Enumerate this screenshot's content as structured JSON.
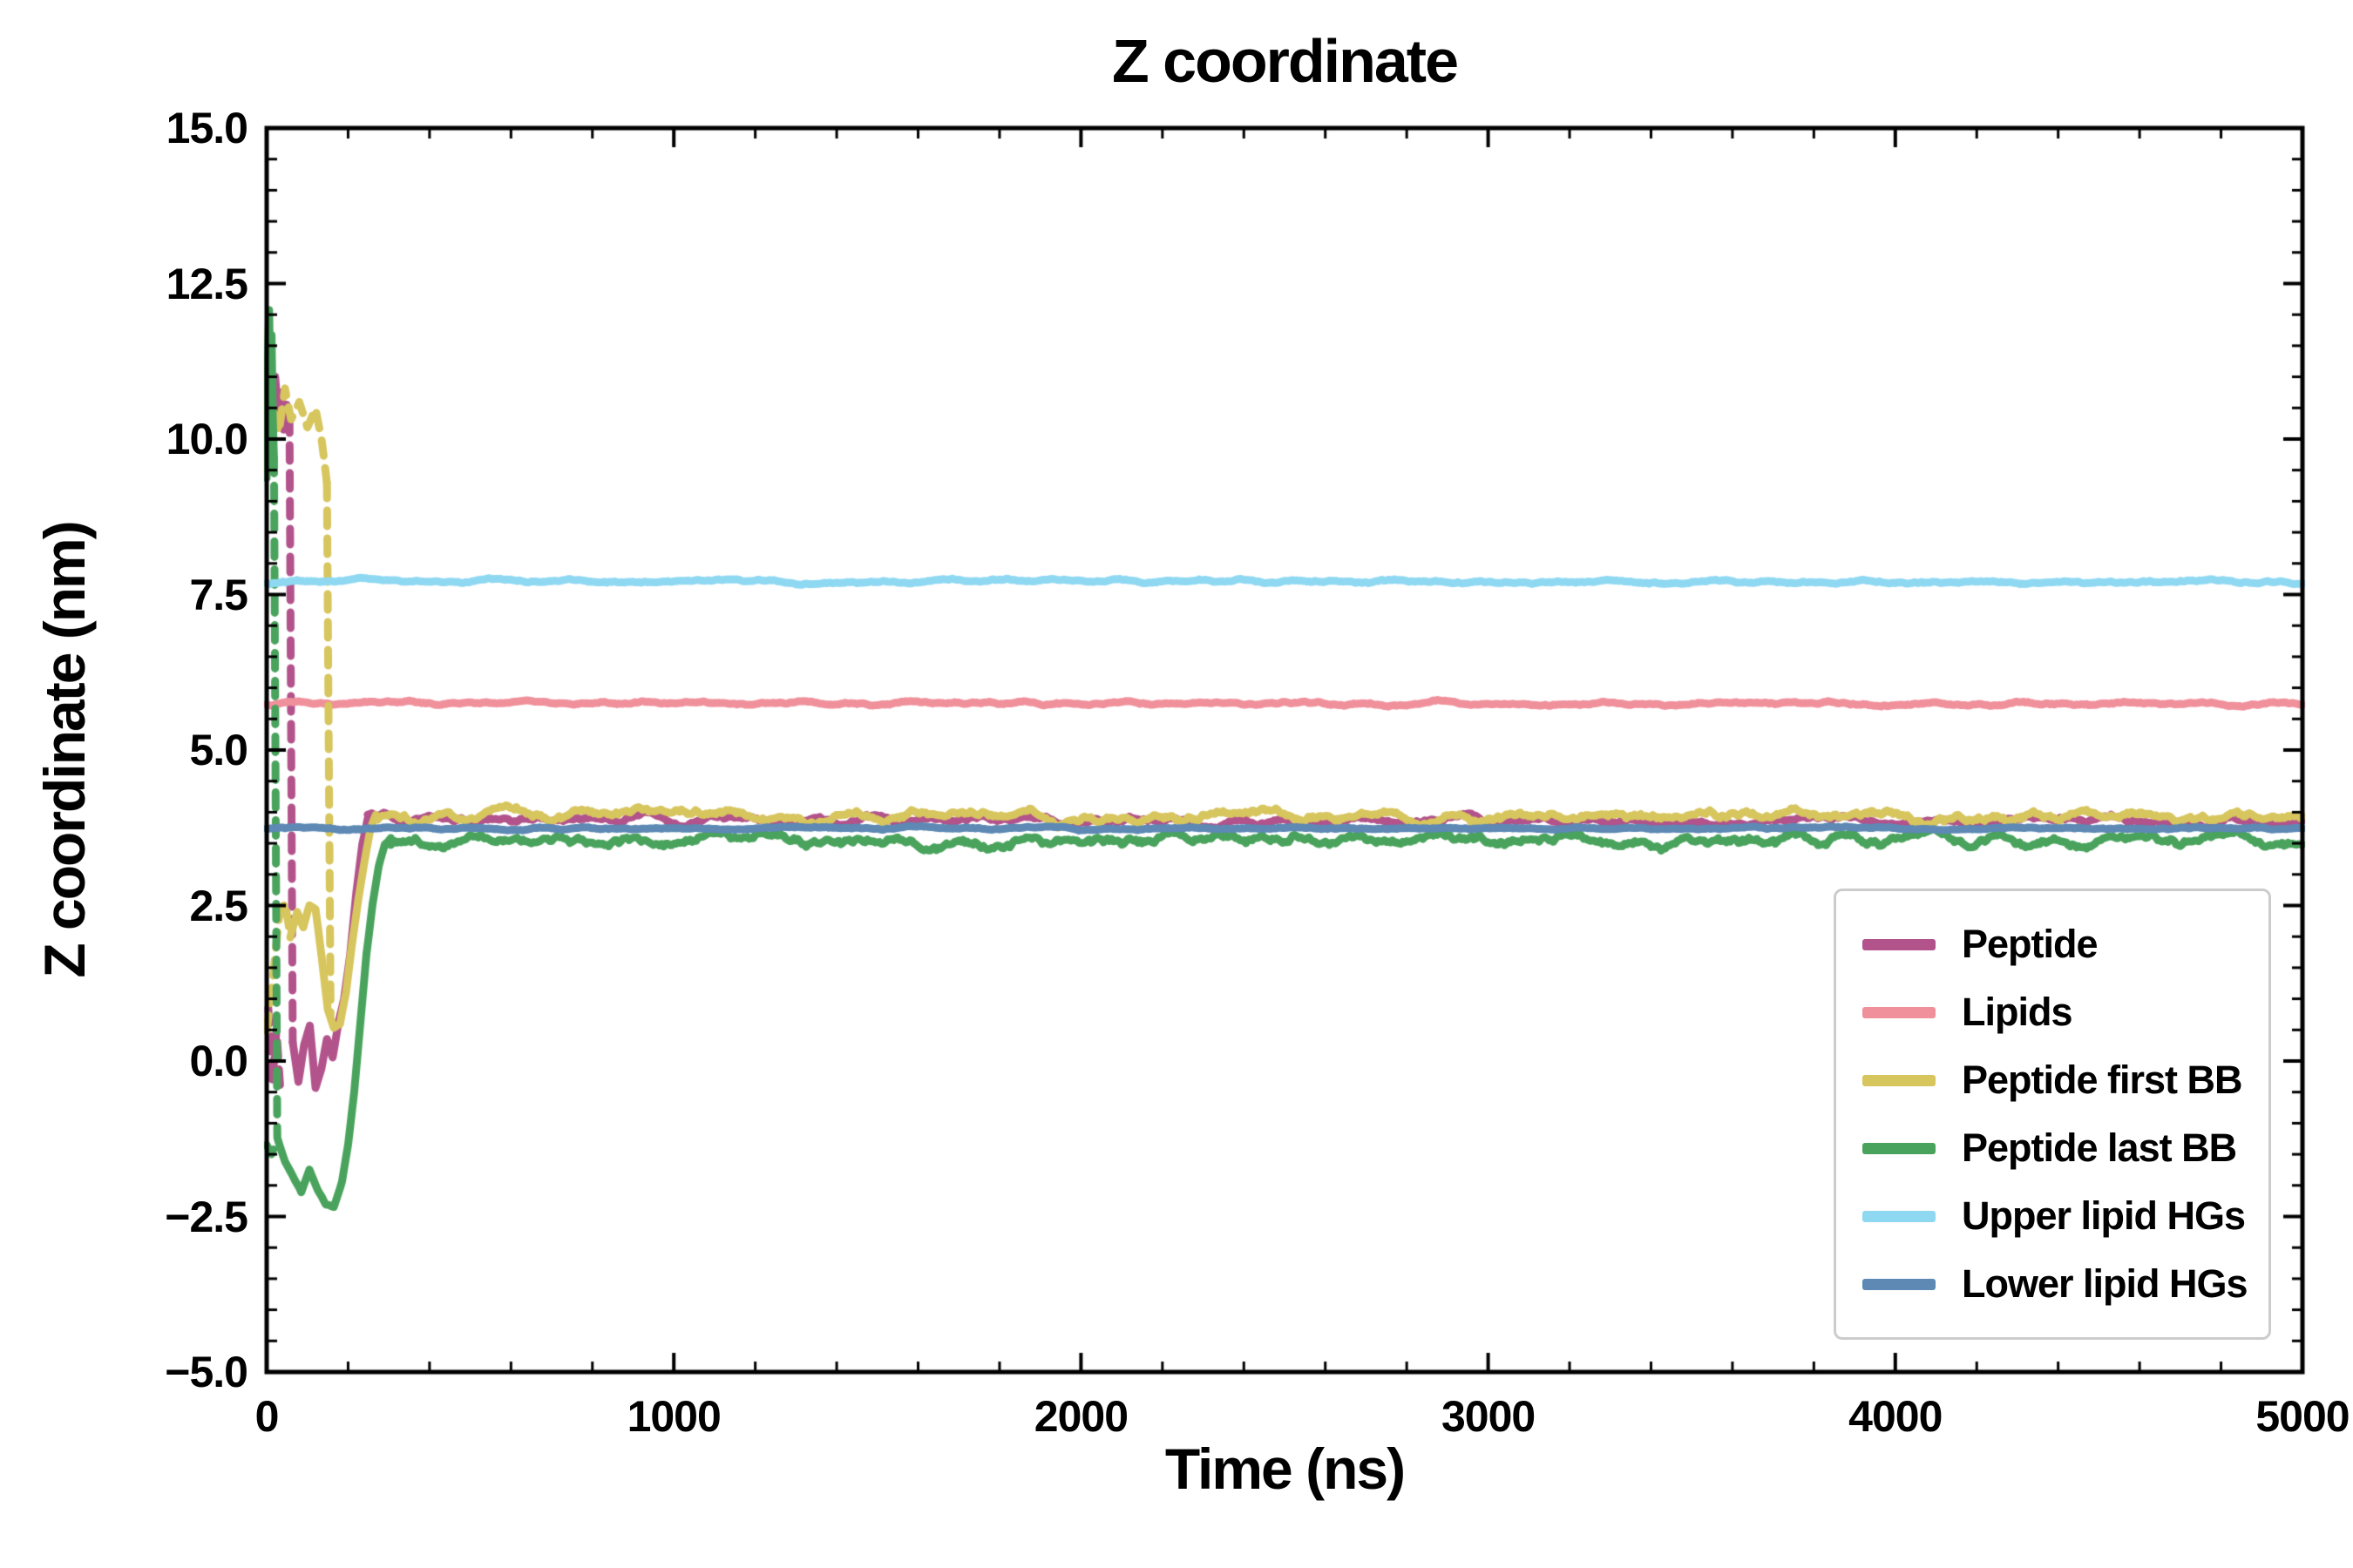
{
  "figure": {
    "background": "#ffffff",
    "axis_color": "#000000",
    "legend_border_color": "#cccccc"
  },
  "chart_data": {
    "type": "line",
    "title": "Z coordinate",
    "xlabel": "Time (ns)",
    "ylabel": "Z coordinate (nm)",
    "xlim": [
      0,
      5000
    ],
    "ylim": [
      -5.0,
      15.0
    ],
    "xticks": [
      0,
      1000,
      2000,
      3000,
      4000,
      5000
    ],
    "xtick_labels": [
      "0",
      "1000",
      "2000",
      "3000",
      "4000",
      "5000"
    ],
    "yticks": [
      -5.0,
      -2.5,
      0.0,
      2.5,
      5.0,
      7.5,
      10.0,
      12.5,
      15.0
    ],
    "ytick_labels": [
      "−5.0",
      "−2.5",
      "0.0",
      "2.5",
      "5.0",
      "7.5",
      "10.0",
      "12.5",
      "15.0"
    ],
    "x_minor_step": 200,
    "y_minor_step": 0.5,
    "grid": false,
    "legend_position": "lower right",
    "series": [
      {
        "name": "Peptide",
        "color": "#b2538b",
        "linewidth": 9,
        "noise_amp": 0.09,
        "segments": [
          {
            "style": "solid",
            "noise": 0.25,
            "points": [
              [
                0,
                10.4
              ],
              [
                7,
                10.9
              ],
              [
                14,
                10.2
              ],
              [
                21,
                11.0
              ],
              [
                28,
                10.4
              ],
              [
                35,
                10.75
              ],
              [
                42,
                10.15
              ],
              [
                49,
                10.55
              ],
              [
                56,
                10.35
              ]
            ]
          },
          {
            "style": "dashed",
            "noise": 0,
            "points": [
              [
                4,
                0.85
              ],
              [
                14,
                -0.35
              ],
              [
                24,
                0.5
              ],
              [
                34,
                -0.5
              ]
            ]
          },
          {
            "style": "dashed",
            "noise": 0,
            "points": [
              [
                56,
                10.35
              ],
              [
                64,
                0.3
              ]
            ]
          },
          {
            "style": "solid",
            "noise": 0.3,
            "points": [
              [
                64,
                0.3
              ],
              [
                78,
                -0.35
              ],
              [
                92,
                0.25
              ],
              [
                106,
                0.55
              ],
              [
                120,
                -0.45
              ],
              [
                134,
                -0.15
              ],
              [
                148,
                0.35
              ],
              [
                162,
                0.05
              ],
              [
                176,
                0.6
              ],
              [
                190,
                1.0
              ],
              [
                205,
                1.7
              ],
              [
                220,
                2.7
              ],
              [
                235,
                3.5
              ],
              [
                248,
                3.9
              ]
            ]
          },
          {
            "style": "solid",
            "noise": 1,
            "points": [
              [
                248,
                3.9
              ],
              [
                5000,
                3.85
              ]
            ]
          }
        ]
      },
      {
        "name": "Lipids",
        "color": "#f0909b",
        "linewidth": 9,
        "noise_amp": 0.04,
        "segments": [
          {
            "style": "solid",
            "noise": 1,
            "points": [
              [
                0,
                5.76
              ],
              [
                5000,
                5.74
              ]
            ]
          }
        ]
      },
      {
        "name": "Peptide first BB",
        "color": "#d7c55e",
        "linewidth": 9,
        "noise_amp": 0.12,
        "segments": [
          {
            "style": "dashed",
            "noise": 0.2,
            "points": [
              [
                0,
                9.7
              ],
              [
                15,
                10.5
              ],
              [
                30,
                10.1
              ],
              [
                45,
                10.8
              ],
              [
                60,
                10.3
              ],
              [
                80,
                10.6
              ],
              [
                100,
                10.2
              ],
              [
                120,
                10.5
              ],
              [
                135,
                10.0
              ],
              [
                148,
                9.3
              ]
            ]
          },
          {
            "style": "dashed",
            "noise": 0,
            "points": [
              [
                148,
                9.3
              ],
              [
                157,
                0.75
              ]
            ]
          },
          {
            "style": "dashed",
            "noise": 0.2,
            "points": [
              [
                0,
                0.5
              ],
              [
                15,
                1.3
              ],
              [
                30,
                2.3
              ],
              [
                45,
                2.55
              ],
              [
                58,
                2.0
              ]
            ]
          },
          {
            "style": "solid",
            "noise": 0.3,
            "points": [
              [
                58,
                2.0
              ],
              [
                75,
                2.4
              ],
              [
                90,
                2.15
              ],
              [
                105,
                2.5
              ],
              [
                120,
                2.45
              ],
              [
                135,
                1.7
              ],
              [
                150,
                0.85
              ],
              [
                165,
                0.55
              ],
              [
                180,
                0.6
              ],
              [
                195,
                1.1
              ],
              [
                210,
                1.9
              ],
              [
                225,
                2.6
              ],
              [
                240,
                3.2
              ],
              [
                255,
                3.75
              ],
              [
                268,
                3.95
              ]
            ]
          },
          {
            "style": "solid",
            "noise": 1,
            "points": [
              [
                268,
                3.95
              ],
              [
                5000,
                3.92
              ]
            ]
          }
        ]
      },
      {
        "name": "Peptide last BB",
        "color": "#49a35c",
        "linewidth": 9,
        "noise_amp": 0.14,
        "segments": [
          {
            "style": "solid",
            "noise": 0.15,
            "points": [
              [
                0,
                9.4
              ],
              [
                3,
                11.3
              ],
              [
                6,
                12.1
              ],
              [
                9,
                11.0
              ],
              [
                12,
                11.7
              ],
              [
                15,
                10.4
              ],
              [
                18,
                9.7
              ]
            ]
          },
          {
            "style": "dashed",
            "noise": 0,
            "points": [
              [
                18,
                9.7
              ],
              [
                26,
                -1.2
              ]
            ]
          },
          {
            "style": "dashed",
            "noise": 0.1,
            "points": [
              [
                0,
                -1.35
              ],
              [
                12,
                -1.5
              ],
              [
                24,
                -1.3
              ]
            ]
          },
          {
            "style": "solid",
            "noise": 0.25,
            "points": [
              [
                26,
                -1.2
              ],
              [
                45,
                -1.6
              ],
              [
                65,
                -1.85
              ],
              [
                85,
                -2.1
              ],
              [
                105,
                -1.75
              ],
              [
                125,
                -2.05
              ],
              [
                145,
                -2.3
              ],
              [
                165,
                -2.35
              ],
              [
                185,
                -1.95
              ],
              [
                200,
                -1.35
              ],
              [
                215,
                -0.5
              ],
              [
                230,
                0.6
              ],
              [
                245,
                1.7
              ],
              [
                260,
                2.5
              ],
              [
                275,
                3.1
              ],
              [
                290,
                3.45
              ],
              [
                305,
                3.55
              ]
            ]
          },
          {
            "style": "solid",
            "noise": 1,
            "points": [
              [
                305,
                3.55
              ],
              [
                5000,
                3.55
              ]
            ]
          }
        ]
      },
      {
        "name": "Upper lipid HGs",
        "color": "#8fd8f2",
        "linewidth": 9,
        "noise_amp": 0.04,
        "segments": [
          {
            "style": "solid",
            "noise": 1,
            "points": [
              [
                0,
                7.72
              ],
              [
                5000,
                7.7
              ]
            ]
          }
        ]
      },
      {
        "name": "Lower lipid HGs",
        "color": "#5d89b4",
        "linewidth": 9,
        "noise_amp": 0.028,
        "segments": [
          {
            "style": "solid",
            "noise": 1,
            "points": [
              [
                0,
                3.74
              ],
              [
                5000,
                3.74
              ]
            ]
          }
        ]
      }
    ]
  }
}
